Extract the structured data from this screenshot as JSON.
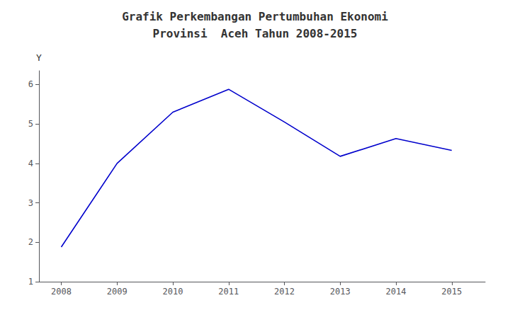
{
  "chart_data": {
    "type": "line",
    "title": "Grafik Perkembangan Pertumbuhan Ekonomi",
    "subtitle": "Provinsi  Aceh Tahun 2008-2015",
    "ylabel": "Y",
    "x": [
      2008,
      2009,
      2010,
      2011,
      2012,
      2013,
      2014,
      2015
    ],
    "values": [
      1.88,
      4.0,
      5.3,
      5.88,
      5.05,
      4.18,
      4.63,
      4.33
    ],
    "color": "#0000CC",
    "xlim": [
      2007.6,
      2015.6
    ],
    "ylim": [
      1.0,
      6.35
    ],
    "xticks": [
      2008,
      2009,
      2010,
      2011,
      2012,
      2013,
      2014,
      2015
    ],
    "yticks": [
      1,
      2,
      3,
      4,
      5,
      6
    ],
    "grid": false
  }
}
